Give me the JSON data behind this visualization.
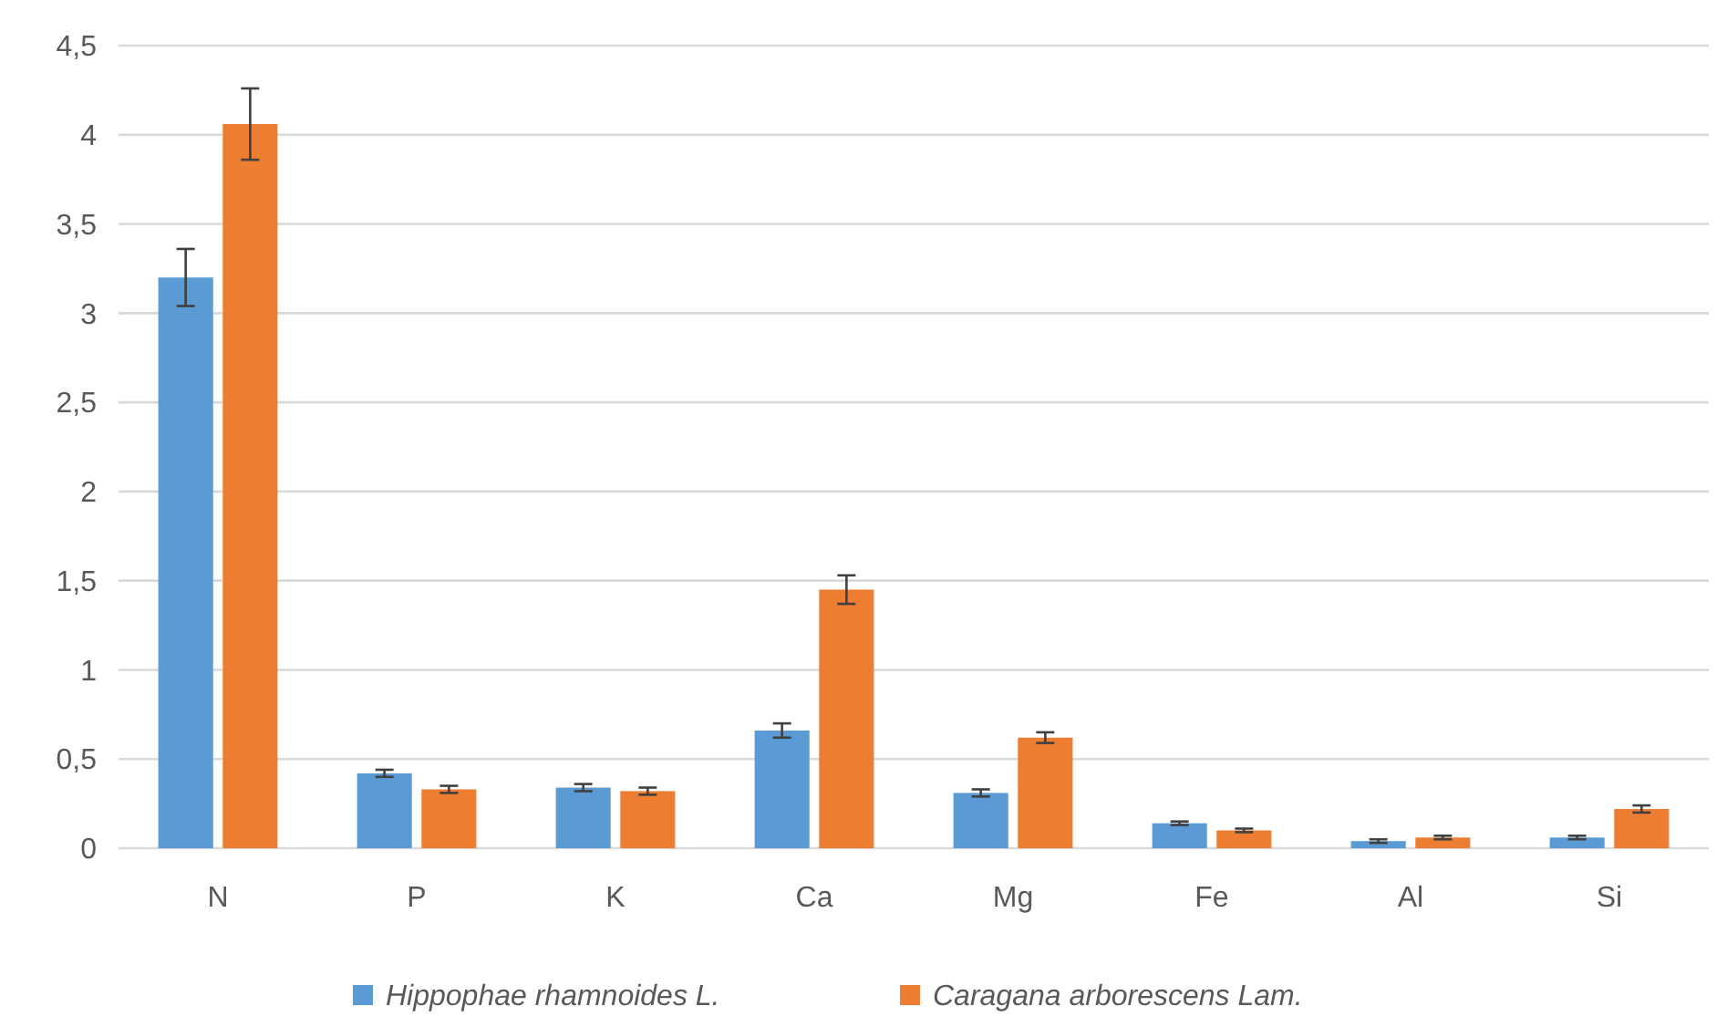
{
  "chart_data": {
    "type": "bar",
    "categories": [
      "N",
      "P",
      "K",
      "Ca",
      "Mg",
      "Fe",
      "Al",
      "Si"
    ],
    "series": [
      {
        "name": "Hippophae rhamnoides L.",
        "color": "#5b9bd5",
        "values": [
          3.2,
          0.42,
          0.34,
          0.66,
          0.31,
          0.14,
          0.04,
          0.06
        ],
        "errors": [
          0.16,
          0.02,
          0.02,
          0.04,
          0.02,
          0.01,
          0.01,
          0.01
        ]
      },
      {
        "name": "Caragana arborescens Lam.",
        "color": "#ed7d31",
        "values": [
          4.06,
          0.33,
          0.32,
          1.45,
          0.62,
          0.1,
          0.06,
          0.22
        ],
        "errors": [
          0.2,
          0.02,
          0.02,
          0.08,
          0.03,
          0.01,
          0.01,
          0.02
        ]
      }
    ],
    "ylim": [
      0,
      4.5
    ],
    "yticks": [
      0,
      {
        "value": 0.5,
        "label": "0,5"
      },
      1,
      {
        "value": 1.5,
        "label": "1,5"
      },
      2,
      {
        "value": 2.5,
        "label": "2,5"
      },
      3,
      {
        "value": 3.5,
        "label": "3,5"
      },
      4,
      {
        "value": 4.5,
        "label": "4,5"
      }
    ],
    "grid": "y",
    "legend": "bottom"
  }
}
